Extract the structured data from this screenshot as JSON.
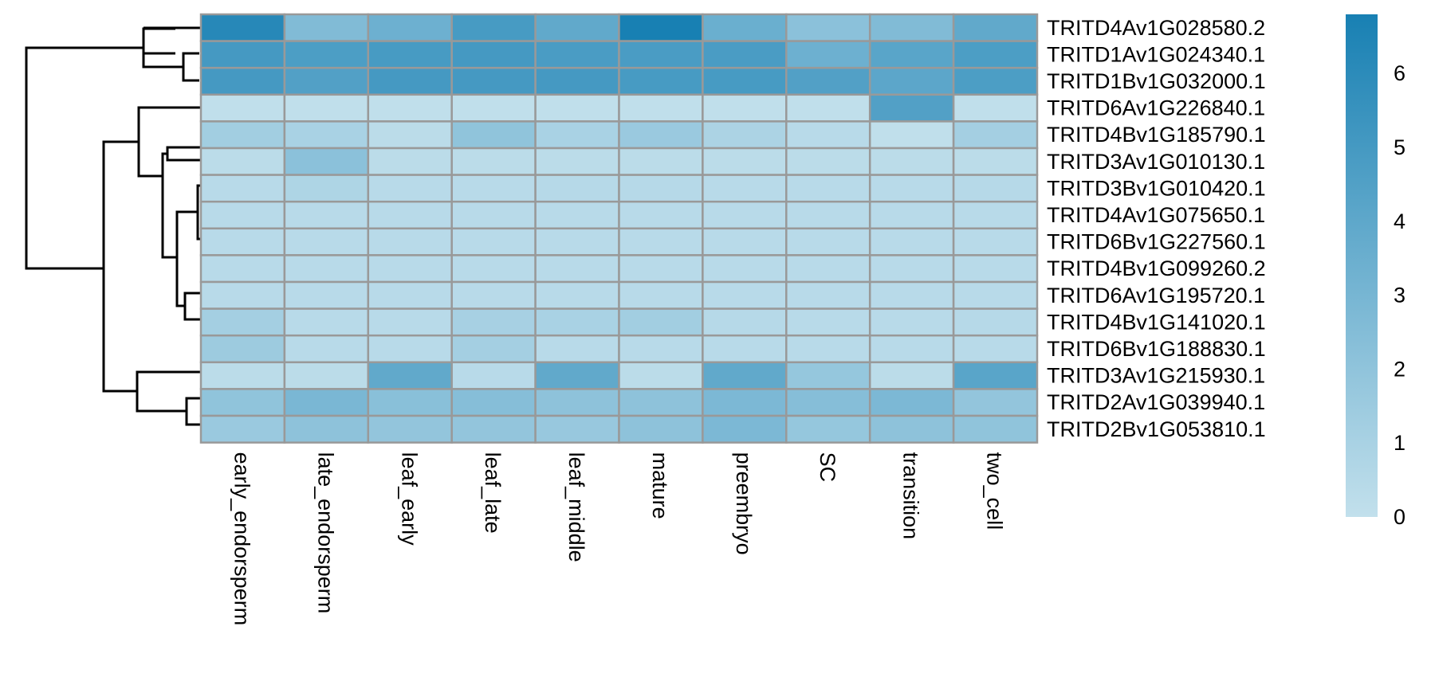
{
  "chart_data": {
    "type": "heatmap",
    "title": "",
    "rows": [
      "TRITD4Av1G028580.2",
      "TRITD1Av1G024340.1",
      "TRITD1Bv1G032000.1",
      "TRITD6Av1G226840.1",
      "TRITD4Bv1G185790.1",
      "TRITD3Av1G010130.1",
      "TRITD3Bv1G010420.1",
      "TRITD4Av1G075650.1",
      "TRITD6Bv1G227560.1",
      "TRITD4Bv1G099260.2",
      "TRITD6Av1G195720.1",
      "TRITD4Bv1G141020.1",
      "TRITD6Bv1G188830.1",
      "TRITD3Av1G215930.1",
      "TRITD2Av1G039940.1",
      "TRITD2Bv1G053810.1"
    ],
    "columns": [
      "early_endorsperm",
      "late_endorsperm",
      "leaf_early",
      "leaf_late",
      "leaf_middle",
      "mature",
      "preembryo",
      "SC",
      "transition",
      "two_cell"
    ],
    "values": [
      [
        6.2,
        2.6,
        3.4,
        4.9,
        3.9,
        6.8,
        3.5,
        2.2,
        2.6,
        3.9
      ],
      [
        5.0,
        4.7,
        4.9,
        5.0,
        4.8,
        4.8,
        4.8,
        3.4,
        4.2,
        4.7
      ],
      [
        5.0,
        4.5,
        5.0,
        5.0,
        5.0,
        4.9,
        4.9,
        4.5,
        4.1,
        4.7
      ],
      [
        0.1,
        0.1,
        0.1,
        0.1,
        0.1,
        0.1,
        0.1,
        0.1,
        4.5,
        0.1
      ],
      [
        1.3,
        1.0,
        0.3,
        2.0,
        1.0,
        1.6,
        0.9,
        0.4,
        0.1,
        1.2
      ],
      [
        0.3,
        2.2,
        0.3,
        0.3,
        0.3,
        0.3,
        0.3,
        0.3,
        0.3,
        0.3
      ],
      [
        0.4,
        0.8,
        0.4,
        0.4,
        0.5,
        0.5,
        0.4,
        0.4,
        0.4,
        0.5
      ],
      [
        0.4,
        0.4,
        0.4,
        0.4,
        0.4,
        0.4,
        0.4,
        0.4,
        0.4,
        0.4
      ],
      [
        0.4,
        0.4,
        0.4,
        0.4,
        0.4,
        0.4,
        0.4,
        0.4,
        0.4,
        0.4
      ],
      [
        0.4,
        0.4,
        0.4,
        0.4,
        0.4,
        0.4,
        0.4,
        0.4,
        0.4,
        0.4
      ],
      [
        0.4,
        0.4,
        0.4,
        0.4,
        0.4,
        0.4,
        0.4,
        0.4,
        0.4,
        0.4
      ],
      [
        1.2,
        0.4,
        0.4,
        1.1,
        1.0,
        1.3,
        0.5,
        0.4,
        0.4,
        0.5
      ],
      [
        1.5,
        0.4,
        0.4,
        1.2,
        0.4,
        0.4,
        0.4,
        0.4,
        0.4,
        0.4
      ],
      [
        0.3,
        0.3,
        3.9,
        0.4,
        3.9,
        0.3,
        3.9,
        1.8,
        0.3,
        4.2
      ],
      [
        2.0,
        2.9,
        2.3,
        2.4,
        2.1,
        2.1,
        2.8,
        2.4,
        2.8,
        1.9
      ],
      [
        1.6,
        2.1,
        1.9,
        1.9,
        1.7,
        2.1,
        2.8,
        1.8,
        2.1,
        2.0
      ]
    ],
    "colorbar": {
      "ticks": [
        0,
        1,
        2,
        3,
        4,
        5,
        6
      ],
      "min": 0,
      "max": 6.8,
      "low_color": "#c2e0ec",
      "high_color": "#1880b3"
    },
    "cell_border_color": "#999999",
    "dendrogram": {
      "side": "left",
      "note": "row clustering tree"
    }
  }
}
